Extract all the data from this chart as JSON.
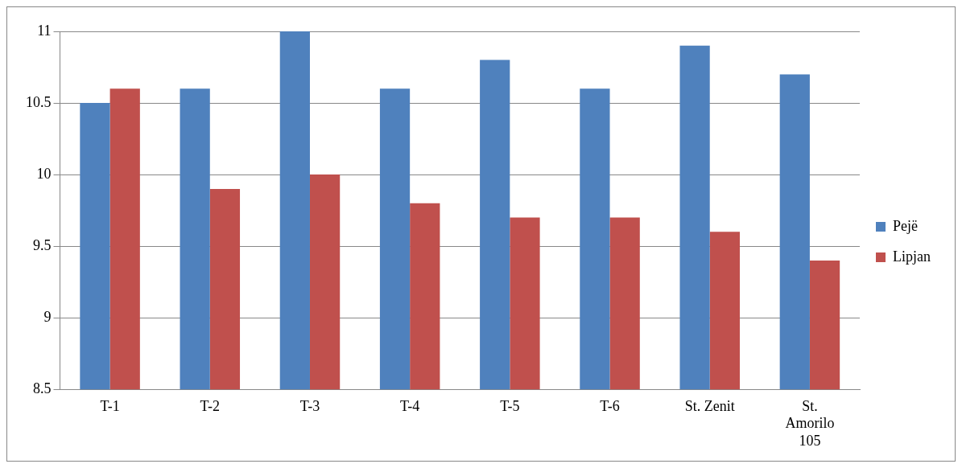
{
  "chart_data": {
    "type": "bar",
    "categories": [
      "T-1",
      "T-2",
      "T-3",
      "T-4",
      "T-5",
      "T-6",
      "St. Zenit",
      "St. Amorilo 105"
    ],
    "series": [
      {
        "name": "Pejë",
        "color": "#4f81bd",
        "values": [
          10.5,
          10.6,
          11.0,
          10.6,
          10.8,
          10.6,
          10.9,
          10.7
        ]
      },
      {
        "name": "Lipjan",
        "color": "#c0504d",
        "values": [
          10.6,
          9.9,
          10.0,
          9.8,
          9.7,
          9.7,
          9.6,
          9.4
        ]
      }
    ],
    "ylim": [
      8.5,
      11
    ],
    "yticks": [
      8.5,
      9,
      9.5,
      10,
      10.5,
      11
    ],
    "grid": "y",
    "legend": "right"
  }
}
